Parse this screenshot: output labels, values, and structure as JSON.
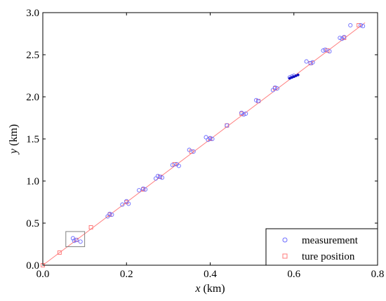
{
  "chart_data": {
    "type": "scatter",
    "title": "",
    "xlabel": {
      "var": "x",
      "unit": " (km)"
    },
    "ylabel": {
      "var": "y",
      "unit": " (km)"
    },
    "xlim": [
      0,
      0.8
    ],
    "ylim": [
      0,
      3.0
    ],
    "xticks": [
      "0.0",
      "0.2",
      "0.4",
      "0.6",
      "0.8"
    ],
    "yticks": [
      "0.0",
      "0.5",
      "1.0",
      "1.5",
      "2.0",
      "2.5",
      "3.0"
    ],
    "grid": false,
    "legend_position": "bottom-right",
    "colors": {
      "measurement": "#6b6bff",
      "true_position": "#ff7b7b",
      "line": "#ff8080",
      "highlight": "#1010c0",
      "box": "#808080"
    },
    "series": [
      {
        "name": "measurement",
        "marker": "circle",
        "points": [
          [
            0.072,
            0.32
          ],
          [
            0.08,
            0.3
          ],
          [
            0.09,
            0.28
          ],
          [
            0.075,
            0.29
          ],
          [
            0.155,
            0.58
          ],
          [
            0.16,
            0.61
          ],
          [
            0.165,
            0.6
          ],
          [
            0.19,
            0.72
          ],
          [
            0.2,
            0.76
          ],
          [
            0.205,
            0.73
          ],
          [
            0.23,
            0.89
          ],
          [
            0.24,
            0.91
          ],
          [
            0.245,
            0.9
          ],
          [
            0.27,
            1.03
          ],
          [
            0.28,
            1.05
          ],
          [
            0.285,
            1.04
          ],
          [
            0.275,
            1.06
          ],
          [
            0.31,
            1.19
          ],
          [
            0.32,
            1.2
          ],
          [
            0.325,
            1.18
          ],
          [
            0.35,
            1.37
          ],
          [
            0.36,
            1.35
          ],
          [
            0.39,
            1.52
          ],
          [
            0.395,
            1.49
          ],
          [
            0.4,
            1.51
          ],
          [
            0.405,
            1.5
          ],
          [
            0.44,
            1.66
          ],
          [
            0.475,
            1.81
          ],
          [
            0.48,
            1.79
          ],
          [
            0.485,
            1.8
          ],
          [
            0.51,
            1.96
          ],
          [
            0.515,
            1.95
          ],
          [
            0.55,
            2.08
          ],
          [
            0.555,
            2.11
          ],
          [
            0.56,
            2.1
          ],
          [
            0.59,
            2.23
          ],
          [
            0.595,
            2.24
          ],
          [
            0.6,
            2.25
          ],
          [
            0.63,
            2.42
          ],
          [
            0.64,
            2.4
          ],
          [
            0.645,
            2.41
          ],
          [
            0.67,
            2.55
          ],
          [
            0.675,
            2.56
          ],
          [
            0.685,
            2.54
          ],
          [
            0.71,
            2.7
          ],
          [
            0.715,
            2.69
          ],
          [
            0.72,
            2.71
          ],
          [
            0.735,
            2.85
          ],
          [
            0.76,
            2.85
          ],
          [
            0.765,
            2.84
          ]
        ]
      },
      {
        "name": "ture position",
        "marker": "square",
        "points": [
          [
            0.0,
            0.0
          ],
          [
            0.04,
            0.15
          ],
          [
            0.08,
            0.3
          ],
          [
            0.115,
            0.45
          ],
          [
            0.16,
            0.6
          ],
          [
            0.2,
            0.75
          ],
          [
            0.24,
            0.9
          ],
          [
            0.28,
            1.05
          ],
          [
            0.315,
            1.2
          ],
          [
            0.355,
            1.35
          ],
          [
            0.4,
            1.5
          ],
          [
            0.44,
            1.66
          ],
          [
            0.475,
            1.8
          ],
          [
            0.515,
            1.95
          ],
          [
            0.555,
            2.1
          ],
          [
            0.64,
            2.4
          ],
          [
            0.68,
            2.55
          ],
          [
            0.72,
            2.7
          ],
          [
            0.755,
            2.85
          ]
        ]
      }
    ],
    "true_line": {
      "x": [
        0.0,
        0.77
      ],
      "y": [
        0.0,
        2.88
      ]
    },
    "highlight_points": [
      [
        0.59,
        2.22
      ],
      [
        0.595,
        2.23
      ],
      [
        0.6,
        2.24
      ],
      [
        0.605,
        2.25
      ],
      [
        0.61,
        2.26
      ]
    ],
    "inset_box": {
      "x": [
        0.055,
        0.1
      ],
      "y": [
        0.22,
        0.4
      ]
    }
  }
}
